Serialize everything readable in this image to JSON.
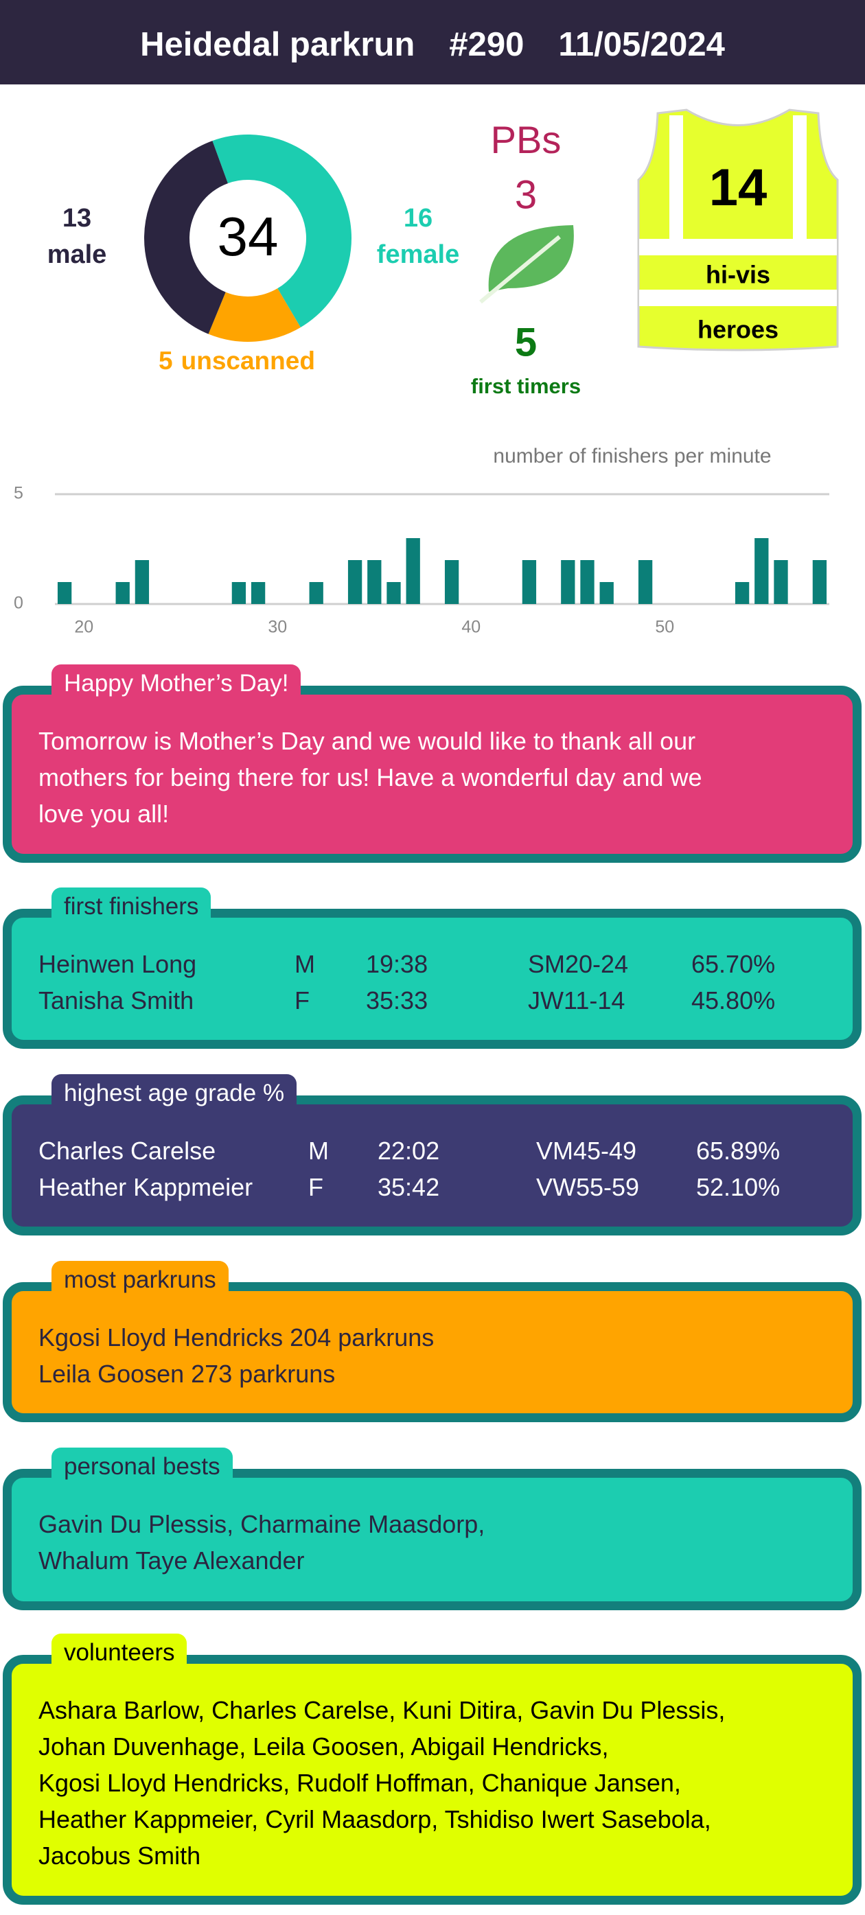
{
  "header": {
    "parkrun": "Heidedal parkrun",
    "event": "#290",
    "date": "11/05/2024"
  },
  "chart_data": [
    {
      "type": "donut",
      "categories": [
        "male",
        "female",
        "unscanned"
      ],
      "values": [
        13,
        16,
        5
      ],
      "colors": [
        "#2b2540",
        "#1ccdb0",
        "#ffa400"
      ],
      "total": 34
    },
    {
      "type": "bar",
      "title": "number of finishers per minute",
      "x": [
        19,
        22,
        23,
        28,
        29,
        32,
        34,
        35,
        36,
        37,
        39,
        43,
        45,
        46,
        47,
        49,
        54,
        55,
        56,
        58
      ],
      "values": [
        1,
        1,
        2,
        1,
        1,
        1,
        2,
        2,
        1,
        3,
        2,
        2,
        2,
        2,
        1,
        2,
        1,
        3,
        2,
        2
      ],
      "color": "#0b7f78",
      "xlim": [
        18.5,
        58.5
      ],
      "ylim": [
        0,
        5
      ],
      "xticks": [
        20,
        30,
        40,
        50
      ],
      "yticks": [
        0,
        5
      ],
      "grid": true
    }
  ],
  "stats": {
    "pbs_label": "PBs",
    "pbs": 3,
    "first_timers": 5,
    "first_timers_label": "first timers",
    "hi_vis": 14,
    "hi_vis_label": [
      "hi-vis",
      "heroes"
    ]
  },
  "sections": [
    {
      "title": "Happy Mother’s Day!",
      "lines": [
        "Tomorrow is Mother’s Day and we would like to thank all our",
        "mothers for being there for us! Have a wonderful day and we",
        "love you all!"
      ]
    },
    {
      "title": "first finishers",
      "rows": [
        [
          "Heinwen Long",
          "M",
          "19:38",
          "SM20-24",
          "65.70%"
        ],
        [
          "Tanisha Smith",
          "F",
          "35:33",
          "JW11-14",
          "45.80%"
        ]
      ]
    },
    {
      "title": "highest age grade %",
      "rows": [
        [
          "Charles Carelse",
          "M",
          "22:02",
          "VM45-49",
          "65.89%"
        ],
        [
          "Heather Kappmeier",
          "F",
          "35:42",
          "VW55-59",
          "52.10%"
        ]
      ]
    },
    {
      "title": "most parkruns",
      "lines": [
        "Kgosi Lloyd Hendricks 204 parkruns",
        "Leila Goosen 273 parkruns"
      ]
    },
    {
      "title": "personal bests",
      "lines": [
        "Gavin Du Plessis, Charmaine Maasdorp,",
        "Whalum Taye Alexander"
      ]
    },
    {
      "title": "volunteers",
      "lines": [
        "Ashara Barlow, Charles Carelse, Kuni Ditira, Gavin Du Plessis,",
        "Johan Duvenhage, Leila Goosen, Abigail Hendricks,",
        "Kgosi Lloyd Hendricks, Rudolf Hoffman, Chanique Jansen,",
        "Heather Kappmeier, Cyril Maasdorp, Tshidiso Iwert Sasebola,",
        "Jacobus Smith"
      ]
    }
  ]
}
